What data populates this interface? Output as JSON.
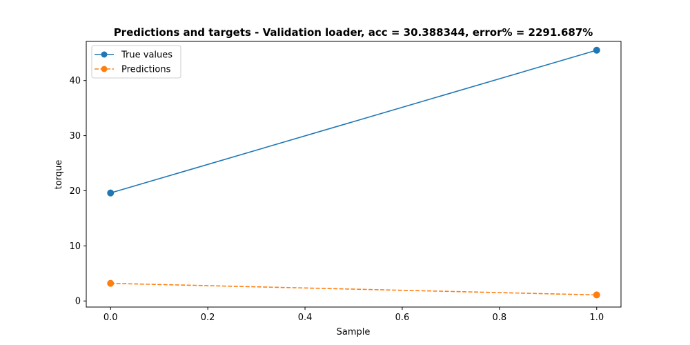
{
  "chart_data": {
    "type": "line",
    "title": "Predictions and targets - Validation loader, acc = 30.388344, error% = 2291.687%",
    "xlabel": "Sample",
    "ylabel": "torque",
    "xlim": [
      -0.05,
      1.05
    ],
    "ylim": [
      -1.1,
      47.1
    ],
    "xticks": [
      "0.0",
      "0.2",
      "0.4",
      "0.6",
      "0.8",
      "1.0"
    ],
    "xtick_values": [
      0,
      0.2,
      0.4,
      0.6,
      0.8,
      1.0
    ],
    "yticks": [
      "0",
      "10",
      "20",
      "30",
      "40"
    ],
    "ytick_values": [
      0,
      10,
      20,
      30,
      40
    ],
    "grid": false,
    "legend_position": "upper left",
    "series": [
      {
        "name": "True values",
        "x": [
          0,
          1
        ],
        "y": [
          19.6,
          45.5
        ],
        "color": "#1f77b4",
        "linestyle": "solid",
        "marker": "circle"
      },
      {
        "name": "Predictions",
        "x": [
          0,
          1
        ],
        "y": [
          3.2,
          1.1
        ],
        "color": "#ff7f0e",
        "linestyle": "dashed",
        "marker": "circle"
      }
    ]
  }
}
